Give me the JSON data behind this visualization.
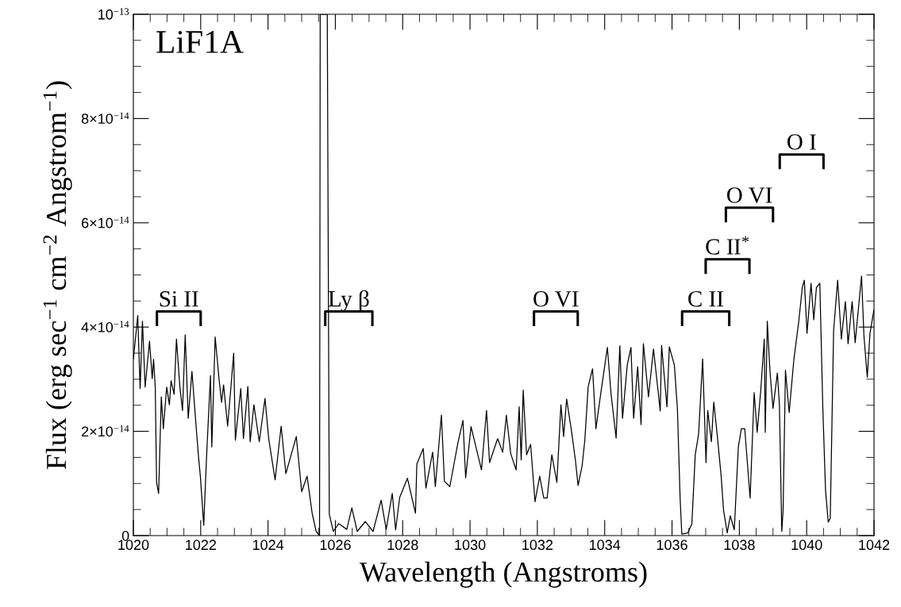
{
  "chart_data": {
    "type": "line",
    "xlabel": "Wavelength (Angstroms)",
    "ylabel": "Flux (erg sec$^{−1}$ cm$^{−2}$ Angstrom$^{−1}$)",
    "annotations": [
      "LiF1A"
    ],
    "xlim": [
      1020,
      1042
    ],
    "xticks": [
      1020,
      1022,
      1024,
      1026,
      1028,
      1030,
      1032,
      1034,
      1036,
      1038,
      1040,
      1042
    ],
    "ylim": [
      0,
      1e-13
    ],
    "yticks": [
      0,
      {
        "value": 2e-14,
        "label": "2×10$^{−14}$"
      },
      {
        "value": 4e-14,
        "label": "4×10$^{−14}$"
      },
      {
        "value": 6e-14,
        "label": "6×10$^{−14}$"
      },
      {
        "value": 8e-14,
        "label": "8×10$^{−14}$"
      },
      {
        "value": 1e-13,
        "label": "10$^{−13}$"
      }
    ],
    "grid": false,
    "line_style": "solid",
    "marker": "none",
    "series": [
      {
        "color": "#000000",
        "x": [
          1020.0,
          1020.13,
          1020.2,
          1020.27,
          1020.35,
          1020.48,
          1020.56,
          1020.6,
          1020.65,
          1020.69,
          1020.75,
          1020.83,
          1020.89,
          1020.99,
          1021.07,
          1021.12,
          1021.21,
          1021.28,
          1021.38,
          1021.46,
          1021.54,
          1021.63,
          1021.74,
          1021.85,
          1021.93,
          1021.99,
          1022.09,
          1022.17,
          1022.29,
          1022.33,
          1022.43,
          1022.55,
          1022.62,
          1022.68,
          1022.8,
          1022.88,
          1022.98,
          1023.03,
          1023.19,
          1023.27,
          1023.4,
          1023.47,
          1023.58,
          1023.74,
          1023.91,
          1024.02,
          1024.21,
          1024.39,
          1024.53,
          1024.84,
          1025.0,
          1025.16,
          1025.31,
          1025.43,
          1025.53,
          1025.55,
          1025.76,
          1025.82,
          1025.94,
          1026.1,
          1026.34,
          1026.49,
          1026.65,
          1026.89,
          1027.12,
          1027.36,
          1027.51,
          1027.69,
          1027.79,
          1027.91,
          1028.14,
          1028.38,
          1028.42,
          1028.61,
          1028.69,
          1028.89,
          1028.97,
          1029.15,
          1029.24,
          1029.4,
          1029.64,
          1029.79,
          1029.87,
          1030.03,
          1030.34,
          1030.49,
          1030.58,
          1030.82,
          1030.97,
          1031.08,
          1031.21,
          1031.37,
          1031.46,
          1031.52,
          1031.58,
          1031.68,
          1031.8,
          1031.93,
          1032.07,
          1032.19,
          1032.29,
          1032.43,
          1032.58,
          1032.7,
          1032.78,
          1032.87,
          1033.02,
          1033.13,
          1033.21,
          1033.33,
          1033.41,
          1033.51,
          1033.64,
          1033.74,
          1033.88,
          1034.08,
          1034.19,
          1034.34,
          1034.45,
          1034.53,
          1034.67,
          1034.78,
          1034.86,
          1034.98,
          1035.08,
          1035.15,
          1035.3,
          1035.45,
          1035.65,
          1035.69,
          1035.85,
          1035.92,
          1036.07,
          1036.16,
          1036.24,
          1036.29,
          1036.47,
          1036.59,
          1036.69,
          1036.79,
          1036.91,
          1037.01,
          1037.06,
          1037.17,
          1037.24,
          1037.34,
          1037.46,
          1037.53,
          1037.64,
          1037.73,
          1037.85,
          1037.97,
          1038.06,
          1038.16,
          1038.32,
          1038.44,
          1038.53,
          1038.64,
          1038.74,
          1038.77,
          1038.83,
          1038.91,
          1039.0,
          1039.13,
          1039.19,
          1039.26,
          1039.3,
          1039.37,
          1039.48,
          1039.62,
          1039.76,
          1039.87,
          1039.93,
          1040.01,
          1040.13,
          1040.21,
          1040.29,
          1040.39,
          1040.48,
          1040.56,
          1040.64,
          1040.7,
          1040.8,
          1040.92,
          1041.03,
          1041.15,
          1041.23,
          1041.35,
          1041.44,
          1041.63,
          1041.7,
          1041.8,
          1041.88,
          1042.0
        ],
        "values": [
          3.38e-14,
          4.22e-14,
          2.82e-14,
          4.11e-14,
          2.85e-14,
          3.73e-14,
          3.01e-14,
          3.38e-14,
          2.85e-14,
          1.02e-14,
          8.1e-15,
          2.66e-14,
          2.05e-14,
          2.85e-14,
          2.51e-14,
          2.97e-14,
          2.71e-14,
          3.77e-14,
          2.86e-14,
          2.4e-14,
          3.85e-14,
          2.25e-14,
          3.15e-14,
          2.21e-14,
          1.55e-14,
          1.14e-14,
          2e-15,
          1.45e-14,
          3.07e-14,
          1.7e-14,
          3.81e-14,
          2.97e-14,
          2.56e-14,
          2.89e-14,
          2.1e-14,
          2.71e-14,
          3.5e-14,
          1.83e-14,
          2.82e-14,
          1.86e-14,
          2.86e-14,
          1.8e-14,
          2.51e-14,
          1.8e-14,
          2.63e-14,
          1.86e-14,
          1.07e-14,
          2.1e-14,
          1.19e-14,
          1.9e-14,
          8.4e-15,
          1.14e-14,
          4.3e-15,
          8e-16,
          0,
          1e-13,
          1e-13,
          4.1e-15,
          8e-16,
          2.3e-15,
          1.2e-15,
          5.3e-15,
          8e-16,
          2.7e-15,
          8e-16,
          6.8e-15,
          1.2e-15,
          8.1e-15,
          1.1e-15,
          7.3e-15,
          1.1e-14,
          4.3e-15,
          1.37e-14,
          1.67e-14,
          9.1e-15,
          1.6e-14,
          9.4e-15,
          2.31e-14,
          1.04e-14,
          9.4e-15,
          1.78e-14,
          2.21e-14,
          1.11e-14,
          2.09e-14,
          1.26e-14,
          2.4e-14,
          1.4e-14,
          1.86e-14,
          1.6e-14,
          2.31e-14,
          1.57e-14,
          1.26e-14,
          2.47e-14,
          1.45e-14,
          2.79e-14,
          1.55e-14,
          1.75e-14,
          6.5e-15,
          1.14e-14,
          7.2e-15,
          7.2e-15,
          1.55e-14,
          1.02e-14,
          2.51e-14,
          1.9e-14,
          2.62e-14,
          1.98e-14,
          1.45e-14,
          9.6e-15,
          1.34e-14,
          1.83e-14,
          2.86e-14,
          3.2e-14,
          2.05e-14,
          2.71e-14,
          3.61e-14,
          2.71e-14,
          1.87e-14,
          3.64e-14,
          2.25e-14,
          3.27e-14,
          3.61e-14,
          2.25e-14,
          3.24e-14,
          2.13e-14,
          3.68e-14,
          2.66e-14,
          3.58e-14,
          2.39e-14,
          3.65e-14,
          2.47e-14,
          3.62e-14,
          3.27e-14,
          2.44e-14,
          7.3e-15,
          3e-16,
          5e-16,
          2.3e-15,
          1.55e-14,
          1.95e-14,
          3.39e-14,
          1.4e-14,
          2.4e-14,
          1.8e-14,
          2.56e-14,
          1.95e-14,
          1.14e-14,
          4.9e-15,
          5e-16,
          3.8e-15,
          1.1e-15,
          1.7e-14,
          2.05e-14,
          2.05e-14,
          7.2e-15,
          2.74e-14,
          1.98e-14,
          2.82e-14,
          3.77e-14,
          1.98e-14,
          4.11e-14,
          3.15e-14,
          2.44e-14,
          3.12e-14,
          2.51e-14,
          8e-16,
          4.9e-15,
          3.17e-14,
          2.36e-14,
          3.38e-14,
          4.08e-14,
          4.76e-14,
          4.9e-14,
          3.88e-14,
          4.84e-14,
          4.14e-14,
          4.76e-14,
          4.84e-14,
          2.44e-14,
          8.7e-15,
          2.6e-15,
          3.3e-15,
          3.93e-14,
          4.9e-14,
          3.77e-14,
          4.49e-14,
          3.68e-14,
          4.49e-14,
          3.7e-14,
          4.98e-14,
          3.84e-14,
          3.04e-14,
          3.88e-14,
          4.34e-14
        ]
      },
      {
        "name": "Si II",
        "color": "#000000",
        "x": [
          1020.7,
          1020.7,
          1022.0,
          1022.0
        ],
        "values": [
          4.02e-14,
          4.3e-14,
          4.3e-14,
          4.02e-14
        ]
      },
      {
        "name": "Ly β",
        "color": "#000000",
        "x": [
          1025.7,
          1025.7,
          1027.1,
          1027.1
        ],
        "values": [
          4.02e-14,
          4.3e-14,
          4.3e-14,
          4.02e-14
        ]
      },
      {
        "name": "O VI",
        "color": "#000000",
        "x": [
          1031.9,
          1031.9,
          1033.2,
          1033.2
        ],
        "values": [
          4.02e-14,
          4.3e-14,
          4.3e-14,
          4.02e-14
        ]
      },
      {
        "name": "C II",
        "color": "#000000",
        "x": [
          1036.3,
          1036.3,
          1037.7,
          1037.7
        ],
        "values": [
          4.02e-14,
          4.3e-14,
          4.3e-14,
          4.02e-14
        ]
      },
      {
        "name": "C II$^{*}$",
        "color": "#000000",
        "x": [
          1037.0,
          1037.0,
          1038.3,
          1038.3
        ],
        "values": [
          5.02e-14,
          5.3e-14,
          5.3e-14,
          5.02e-14
        ]
      },
      {
        "name": "O VI",
        "color": "#000000",
        "x": [
          1037.6,
          1037.6,
          1039.0,
          1039.0
        ],
        "values": [
          6.01e-14,
          6.29e-14,
          6.29e-14,
          6.01e-14
        ]
      },
      {
        "name": "O I",
        "color": "#000000",
        "x": [
          1039.2,
          1039.2,
          1040.5,
          1040.5
        ],
        "values": [
          7.03e-14,
          7.31e-14,
          7.31e-14,
          7.03e-14
        ]
      }
    ]
  }
}
